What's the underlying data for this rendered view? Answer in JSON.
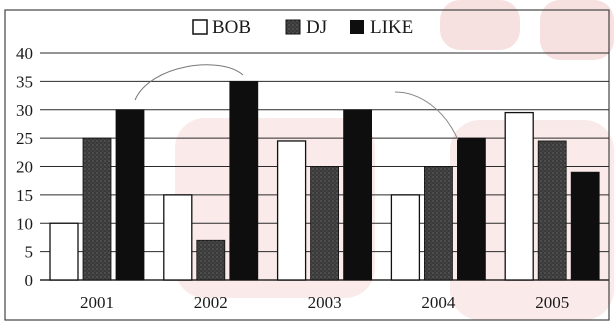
{
  "chart_data": {
    "type": "bar",
    "categories": [
      "2001",
      "2002",
      "2003",
      "2004",
      "2005"
    ],
    "series": [
      {
        "name": "BOB",
        "values": [
          10,
          15,
          24.5,
          15,
          29.5
        ]
      },
      {
        "name": "DJ",
        "values": [
          25,
          7,
          20,
          20,
          24.5
        ]
      },
      {
        "name": "LIKE",
        "values": [
          30,
          35,
          30,
          25,
          19
        ]
      }
    ],
    "yticks": [
      "0",
      "5",
      "10",
      "15",
      "20",
      "25",
      "30",
      "35",
      "40"
    ],
    "ylim": [
      0,
      40
    ],
    "grid": true,
    "legend_position": "top-center"
  },
  "colors": {
    "BOB": "#ffffff",
    "DJ": "#3a3a3a",
    "LIKE": "#0e0e0e",
    "grid": "#2a2a2a",
    "watermark": "#e8a8a8"
  }
}
